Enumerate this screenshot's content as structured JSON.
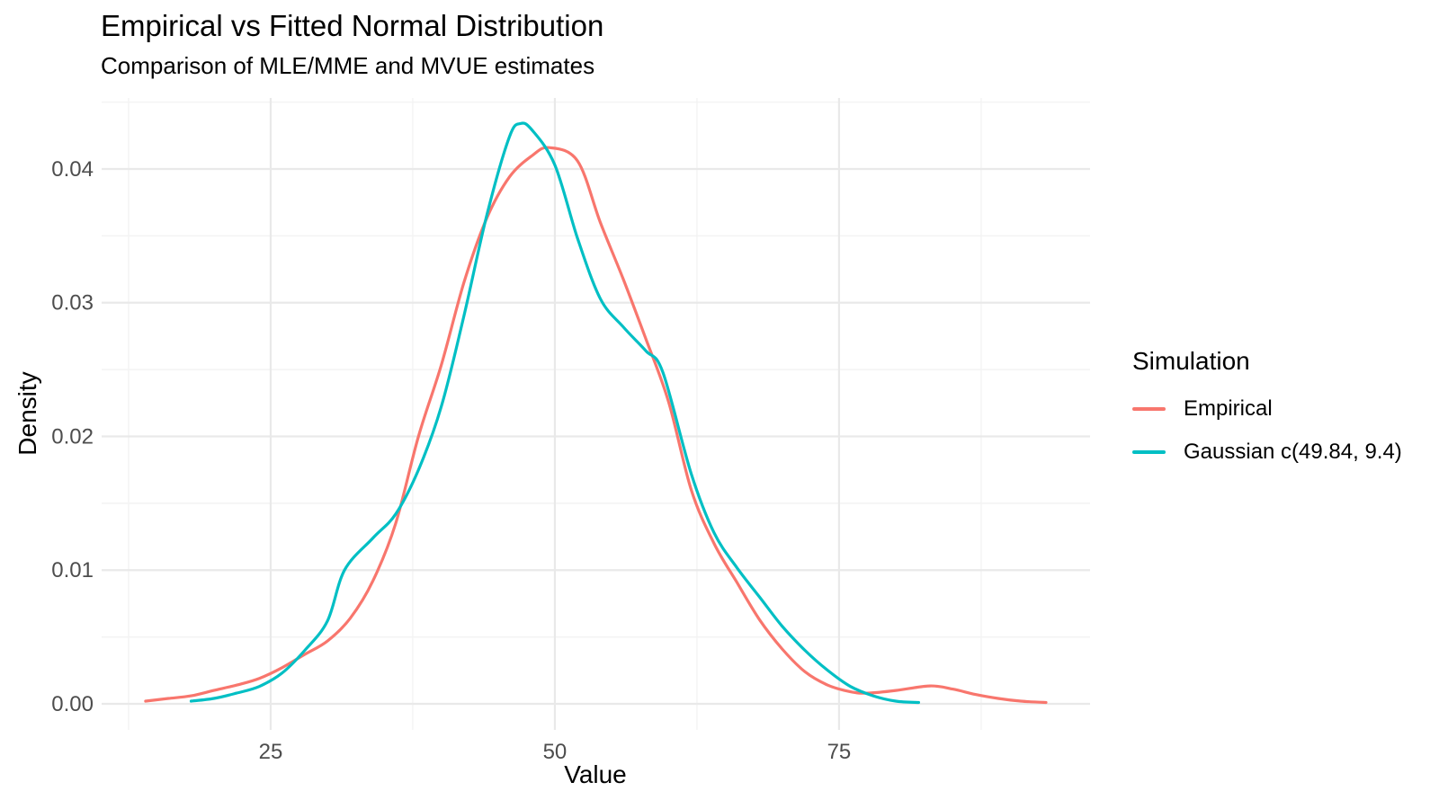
{
  "title": "Empirical vs Fitted Normal Distribution",
  "subtitle": "Comparison of MLE/MME and MVUE estimates",
  "chart_data": {
    "type": "line",
    "title": "Empirical vs Fitted Normal Distribution",
    "subtitle": "Comparison of MLE/MME and MVUE estimates",
    "xlabel": "Value",
    "ylabel": "Density",
    "xlim": [
      10.13,
      97.08
    ],
    "ylim": [
      -0.00195,
      0.04531
    ],
    "grid": true,
    "x_ticks": [
      {
        "v": 25,
        "label": "25"
      },
      {
        "v": 50,
        "label": "50"
      },
      {
        "v": 75,
        "label": "75"
      }
    ],
    "x_minor": [
      12.5,
      37.5,
      62.5,
      87.5
    ],
    "y_ticks": [
      {
        "v": 0.0,
        "label": "0.00"
      },
      {
        "v": 0.01,
        "label": "0.01"
      },
      {
        "v": 0.02,
        "label": "0.02"
      },
      {
        "v": 0.03,
        "label": "0.03"
      },
      {
        "v": 0.04,
        "label": "0.04"
      }
    ],
    "y_minor": [
      0.005,
      0.015,
      0.025,
      0.035,
      0.045
    ],
    "legend": {
      "title": "Simulation",
      "position": "right",
      "entries": [
        {
          "label": "Empirical",
          "color": "#F8766D"
        },
        {
          "label": "Gaussian c(49.84, 9.4)",
          "color": "#00BFC4"
        }
      ]
    },
    "series": [
      {
        "name": "Empirical",
        "color": "#F8766D",
        "points": [
          [
            14,
            0.0002
          ],
          [
            16,
            0.0004
          ],
          [
            18,
            0.0006
          ],
          [
            20,
            0.001
          ],
          [
            22,
            0.0014
          ],
          [
            24,
            0.0019
          ],
          [
            26,
            0.0027
          ],
          [
            28,
            0.0037
          ],
          [
            30,
            0.0047
          ],
          [
            32,
            0.0064
          ],
          [
            34,
            0.0092
          ],
          [
            36,
            0.0135
          ],
          [
            38,
            0.02
          ],
          [
            40,
            0.0253
          ],
          [
            42,
            0.0315
          ],
          [
            44,
            0.0363
          ],
          [
            46,
            0.0394
          ],
          [
            48,
            0.041
          ],
          [
            49.5,
            0.0416
          ],
          [
            52,
            0.0406
          ],
          [
            54,
            0.036
          ],
          [
            56,
            0.0318
          ],
          [
            58,
            0.0273
          ],
          [
            60,
            0.0226
          ],
          [
            62,
            0.016
          ],
          [
            64,
            0.012
          ],
          [
            66,
            0.0091
          ],
          [
            68,
            0.0063
          ],
          [
            70,
            0.0041
          ],
          [
            72,
            0.0024
          ],
          [
            74,
            0.0014
          ],
          [
            76,
            0.0009
          ],
          [
            77.5,
            0.0008
          ],
          [
            80,
            0.001
          ],
          [
            83,
            0.00134
          ],
          [
            85,
            0.0011
          ],
          [
            87,
            0.0007
          ],
          [
            89,
            0.0004
          ],
          [
            91,
            0.0002
          ],
          [
            93.2,
            0.0001
          ]
        ]
      },
      {
        "name": "Gaussian c(49.84, 9.4)",
        "color": "#00BFC4",
        "points": [
          [
            18,
            0.0002
          ],
          [
            20,
            0.0004
          ],
          [
            22,
            0.0008
          ],
          [
            24,
            0.0013
          ],
          [
            26,
            0.0023
          ],
          [
            28,
            0.004
          ],
          [
            30,
            0.0062
          ],
          [
            31.5,
            0.01
          ],
          [
            34,
            0.0124
          ],
          [
            36,
            0.0142
          ],
          [
            38,
            0.0175
          ],
          [
            40,
            0.0222
          ],
          [
            42,
            0.029
          ],
          [
            44,
            0.0365
          ],
          [
            46,
            0.0424
          ],
          [
            47,
            0.0434
          ],
          [
            48,
            0.0429
          ],
          [
            50,
            0.0403
          ],
          [
            52,
            0.0348
          ],
          [
            54,
            0.0303
          ],
          [
            56,
            0.0282
          ],
          [
            58,
            0.0264
          ],
          [
            59.5,
            0.0248
          ],
          [
            62,
            0.0172
          ],
          [
            64,
            0.0128
          ],
          [
            66,
            0.0102
          ],
          [
            68,
            0.008
          ],
          [
            70,
            0.0058
          ],
          [
            72,
            0.004
          ],
          [
            74,
            0.0025
          ],
          [
            76,
            0.0013
          ],
          [
            78,
            0.0006
          ],
          [
            80,
            0.0002
          ],
          [
            82,
            0.0001
          ]
        ]
      }
    ]
  },
  "theme": {
    "background": "#FFFFFF",
    "grid_major": "#E9E9E9",
    "grid_minor": "#F3F3F3",
    "tick_label_color": "#4D4D4D",
    "text_color": "#000000"
  }
}
